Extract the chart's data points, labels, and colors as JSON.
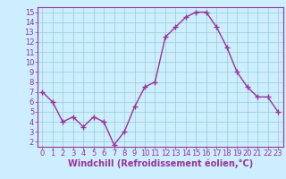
{
  "x": [
    0,
    1,
    2,
    3,
    4,
    5,
    6,
    7,
    8,
    9,
    10,
    11,
    12,
    13,
    14,
    15,
    16,
    17,
    18,
    19,
    20,
    21,
    22,
    23
  ],
  "y": [
    7.0,
    6.0,
    4.0,
    4.5,
    3.5,
    4.5,
    4.0,
    1.7,
    3.0,
    5.5,
    7.5,
    8.0,
    12.5,
    13.5,
    14.5,
    15.0,
    15.0,
    13.5,
    11.5,
    9.0,
    7.5,
    6.5,
    6.5,
    5.0
  ],
  "line_color": "#993399",
  "marker": "+",
  "marker_size": 4,
  "line_width": 1.0,
  "bg_color": "#cceeff",
  "grid_color": "#99cccc",
  "xlabel": "Windchill (Refroidissement éolien,°C)",
  "xlabel_fontsize": 7,
  "xlabel_color": "#993399",
  "ylabel_ticks": [
    2,
    3,
    4,
    5,
    6,
    7,
    8,
    9,
    10,
    11,
    12,
    13,
    14,
    15
  ],
  "xlim": [
    -0.5,
    23.5
  ],
  "ylim": [
    1.5,
    15.5
  ],
  "tick_color": "#993399",
  "tick_fontsize": 6,
  "axis_color": "#993399",
  "spine_color": "#993399"
}
